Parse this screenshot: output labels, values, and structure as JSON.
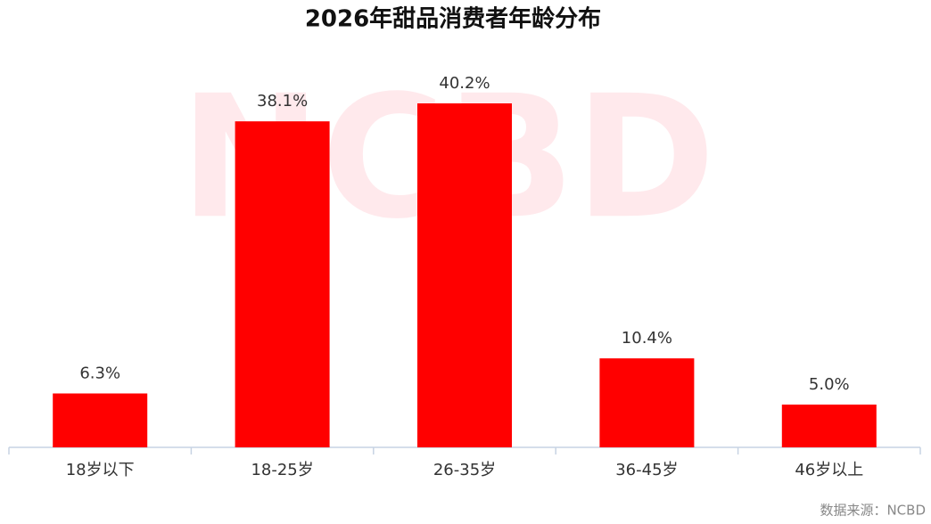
{
  "chart_data": {
    "type": "bar",
    "title": "2026年甜品消费者年龄分布",
    "categories": [
      "18岁以下",
      "18-25岁",
      "26-35岁",
      "36-45岁",
      "46岁以上"
    ],
    "values": [
      6.3,
      38.1,
      40.2,
      10.4,
      5.0
    ],
    "value_labels": [
      "6.3%",
      "38.1%",
      "40.2%",
      "10.4%",
      "5.0%"
    ],
    "color": "#ff0000",
    "watermark": "NCBD",
    "source": "数据来源：NCBD"
  }
}
